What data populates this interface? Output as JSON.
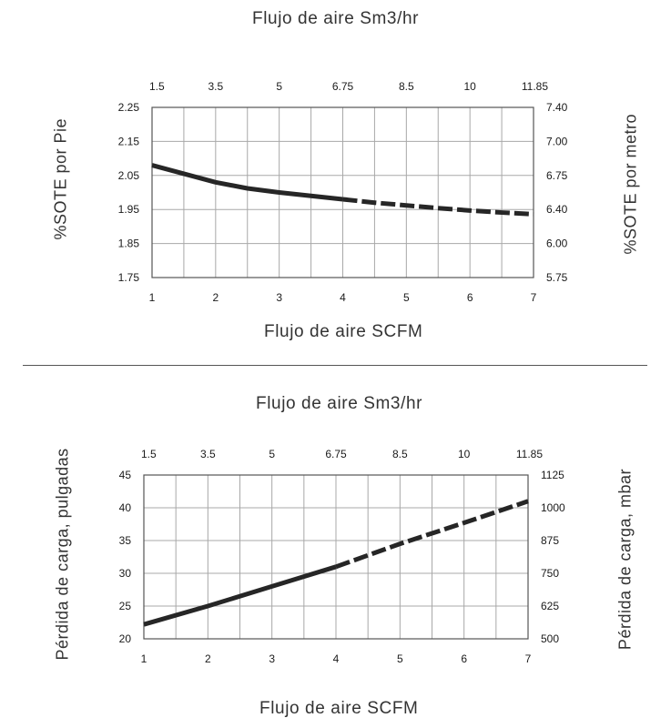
{
  "chart_data": [
    {
      "type": "line",
      "title": "Flujo de aire Sm3/hr",
      "xlabel": "Flujo de aire SCFM",
      "ylabel": "%SOTE por Pie",
      "ylabel_right": "%SOTE por metro",
      "xlim": [
        1,
        7
      ],
      "ylim": [
        1.75,
        2.25
      ],
      "x_ticks": [
        "1",
        "2",
        "3",
        "4",
        "5",
        "6",
        "7"
      ],
      "x_top_ticks": [
        "1.5",
        "3.5",
        "5",
        "6.75",
        "8.5",
        "10",
        "11.85"
      ],
      "y_ticks": [
        "1.75",
        "1.85",
        "1.95",
        "2.05",
        "2.15",
        "2.25"
      ],
      "y_right_ticks": [
        "5.75",
        "6.00",
        "6.40",
        "6.75",
        "7.00",
        "7.40"
      ],
      "grid": true,
      "series": [
        {
          "solid": {
            "x": [
              1,
              1.5,
              2,
              2.5,
              3,
              3.5,
              4
            ],
            "y": [
              2.08,
              2.055,
              2.03,
              2.012,
              2.0,
              1.99,
              1.98
            ]
          },
          "dashed": {
            "x": [
              4,
              4.5,
              5,
              5.5,
              6,
              6.5,
              7
            ],
            "y": [
              1.98,
              1.97,
              1.962,
              1.954,
              1.947,
              1.941,
              1.936
            ]
          }
        }
      ]
    },
    {
      "type": "line",
      "title": "Flujo de aire Sm3/hr",
      "xlabel": "Flujo de aire SCFM",
      "ylabel": "Pérdida de carga, pulgadas",
      "ylabel_right": "Pérdida de carga, mbar",
      "xlim": [
        1,
        7
      ],
      "ylim": [
        20,
        45
      ],
      "x_ticks": [
        "1",
        "2",
        "3",
        "4",
        "5",
        "6",
        "7"
      ],
      "x_top_ticks": [
        "1.5",
        "3.5",
        "5",
        "6.75",
        "8.5",
        "10",
        "11.85"
      ],
      "y_ticks": [
        "20",
        "25",
        "30",
        "35",
        "40",
        "45"
      ],
      "y_right_ticks": [
        "500",
        "625",
        "750",
        "875",
        "1000",
        "1125"
      ],
      "grid": true,
      "series": [
        {
          "solid": {
            "x": [
              1,
              2,
              3,
              4
            ],
            "y": [
              22.2,
              25.0,
              28.0,
              31.0
            ]
          },
          "dashed": {
            "x": [
              4,
              5,
              6,
              7
            ],
            "y": [
              31.0,
              34.5,
              37.7,
              41.0
            ]
          }
        }
      ]
    }
  ]
}
